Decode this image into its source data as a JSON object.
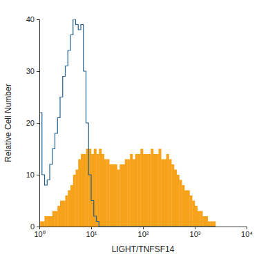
{
  "chart_data": {
    "type": "histogram",
    "x_label": "LIGHT/TNFSF14",
    "y_label": "Relative Cell Number",
    "log": "x",
    "xlim": [
      1,
      10000
    ],
    "ylim": [
      0,
      40
    ],
    "xticks": [
      {
        "value": 1,
        "label": "10⁰"
      },
      {
        "value": 10,
        "label": "10¹"
      },
      {
        "value": 100,
        "label": "10²"
      },
      {
        "value": 1000,
        "label": "10³"
      },
      {
        "value": 10000,
        "label": "10⁴"
      }
    ],
    "yticks": [
      0,
      10,
      20,
      30,
      40
    ],
    "bins": [
      1,
      1.122,
      1.259,
      1.413,
      1.585,
      1.778,
      1.995,
      2.239,
      2.512,
      2.818,
      3.162,
      3.548,
      3.981,
      4.467,
      5.012,
      5.623,
      6.31,
      7.079,
      7.943,
      8.913,
      10,
      11.22,
      12.59,
      14.13,
      15.85,
      17.78,
      19.95,
      22.39,
      25.12,
      28.18,
      31.62,
      35.48,
      39.81,
      44.67,
      50.12,
      56.23,
      63.1,
      70.79,
      79.43,
      89.13,
      100,
      112.2,
      125.9,
      141.3,
      158.5,
      177.8,
      199.5,
      223.9,
      251.2,
      281.8,
      316.2,
      354.8,
      398.1,
      446.7,
      501.2,
      562.3,
      631,
      707.9,
      794.3,
      891.3,
      1000,
      1122,
      1259,
      1413,
      1585,
      1778,
      1995,
      2239,
      2512
    ],
    "series": [
      {
        "type": "bar",
        "color": "#f7a21b",
        "values": [
          1,
          1,
          2,
          2,
          2,
          3,
          3,
          4,
          5,
          5,
          6,
          7,
          8,
          10,
          11,
          13,
          14,
          14,
          15,
          15,
          14,
          15,
          14,
          15,
          14,
          13,
          13,
          12,
          12,
          12,
          11,
          12,
          12,
          13,
          13,
          14,
          13,
          14,
          14,
          15,
          14,
          14,
          14,
          15,
          14,
          14,
          15,
          13,
          13,
          14,
          13,
          12,
          11,
          10,
          9,
          8,
          7,
          7,
          6,
          5,
          4,
          3,
          3,
          2,
          2,
          1,
          1,
          1
        ]
      },
      {
        "type": "step",
        "color": "#22618f",
        "values": [
          22,
          10,
          8,
          9,
          12,
          15,
          18,
          21,
          25,
          29,
          31,
          34,
          37,
          40,
          39,
          38,
          39,
          30,
          20,
          10,
          5,
          2,
          1,
          0,
          0,
          0,
          0,
          0,
          0,
          0,
          0,
          0,
          0,
          0,
          0,
          0,
          0,
          0,
          0,
          0,
          0,
          0,
          0,
          0,
          0,
          0,
          0,
          0,
          0,
          0,
          0,
          0,
          0,
          0,
          0,
          0,
          0,
          0,
          0,
          0,
          0,
          0,
          0,
          0,
          0,
          0,
          0,
          0
        ]
      }
    ]
  }
}
